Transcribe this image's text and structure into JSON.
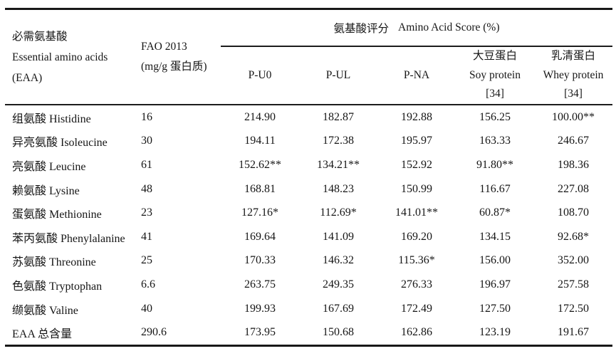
{
  "header": {
    "eaa_zh": "必需氨基酸",
    "eaa_en": "Essential amino acids",
    "eaa_abbr": "(EAA)",
    "fao_line1": "FAO 2013",
    "fao_line2": "(mg/g 蛋白质)",
    "score_group_zh": "氨基酸评分",
    "score_group_en": "Amino Acid Score (%)",
    "col_pu0": "P-U0",
    "col_pul": "P-UL",
    "col_pna": "P-NA",
    "col_soy_zh": "大豆蛋白",
    "col_soy_en": "Soy protein",
    "col_soy_ref": "[34]",
    "col_whey_zh": "乳清蛋白",
    "col_whey_en": "Whey protein",
    "col_whey_ref": "[34]"
  },
  "rows": [
    {
      "name": "组氨酸 Histidine",
      "fao": "16",
      "pu0": "214.90",
      "pul": "182.87",
      "pna": "192.88",
      "soy": "156.25",
      "whey": "100.00**"
    },
    {
      "name": "异亮氨酸 Isoleucine",
      "fao": "30",
      "pu0": "194.11",
      "pul": "172.38",
      "pna": "195.97",
      "soy": "163.33",
      "whey": "246.67"
    },
    {
      "name": "亮氨酸 Leucine",
      "fao": "61",
      "pu0": "152.62**",
      "pul": "134.21**",
      "pna": "152.92",
      "soy": "91.80**",
      "whey": "198.36"
    },
    {
      "name": "赖氨酸 Lysine",
      "fao": "48",
      "pu0": "168.81",
      "pul": "148.23",
      "pna": "150.99",
      "soy": "116.67",
      "whey": "227.08"
    },
    {
      "name": "蛋氨酸 Methionine",
      "fao": "23",
      "pu0": "127.16*",
      "pul": "112.69*",
      "pna": "141.01**",
      "soy": "60.87*",
      "whey": "108.70"
    },
    {
      "name": "苯丙氨酸 Phenylalanine",
      "fao": "41",
      "pu0": "169.64",
      "pul": "141.09",
      "pna": "169.20",
      "soy": "134.15",
      "whey": "92.68*"
    },
    {
      "name": "苏氨酸 Threonine",
      "fao": "25",
      "pu0": "170.33",
      "pul": "146.32",
      "pna": "115.36*",
      "soy": "156.00",
      "whey": "352.00"
    },
    {
      "name": "色氨酸 Tryptophan",
      "fao": "6.6",
      "pu0": "263.75",
      "pul": "249.35",
      "pna": "276.33",
      "soy": "196.97",
      "whey": "257.58"
    },
    {
      "name": "缬氨酸 Valine",
      "fao": "40",
      "pu0": "199.93",
      "pul": "167.69",
      "pna": "172.49",
      "soy": "127.50",
      "whey": "172.50"
    },
    {
      "name": "EAA 总含量",
      "fao": "290.6",
      "pu0": "173.95",
      "pul": "150.68",
      "pna": "162.86",
      "soy": "123.19",
      "whey": "191.67"
    }
  ]
}
